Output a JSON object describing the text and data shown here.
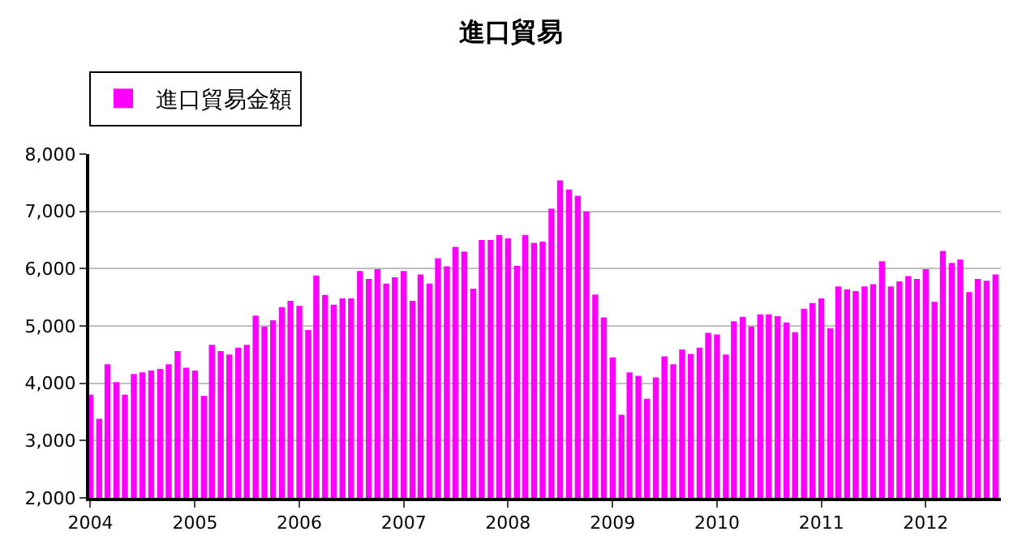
{
  "chart_data": {
    "type": "bar",
    "title": "進口貿易",
    "legend": "top left",
    "grid": "y",
    "x": [
      "2004-01",
      "2004-02",
      "2004-03",
      "2004-04",
      "2004-05",
      "2004-06",
      "2004-07",
      "2004-08",
      "2004-09",
      "2004-10",
      "2004-11",
      "2004-12",
      "2005-01",
      "2005-02",
      "2005-03",
      "2005-04",
      "2005-05",
      "2005-06",
      "2005-07",
      "2005-08",
      "2005-09",
      "2005-10",
      "2005-11",
      "2005-12",
      "2006-01",
      "2006-02",
      "2006-03",
      "2006-04",
      "2006-05",
      "2006-06",
      "2006-07",
      "2006-08",
      "2006-09",
      "2006-10",
      "2006-11",
      "2006-12",
      "2007-01",
      "2007-02",
      "2007-03",
      "2007-04",
      "2007-05",
      "2007-06",
      "2007-07",
      "2007-08",
      "2007-09",
      "2007-10",
      "2007-11",
      "2007-12",
      "2008-01",
      "2008-02",
      "2008-03",
      "2008-04",
      "2008-05",
      "2008-06",
      "2008-07",
      "2008-08",
      "2008-09",
      "2008-10",
      "2008-11",
      "2008-12",
      "2009-01",
      "2009-02",
      "2009-03",
      "2009-04",
      "2009-05",
      "2009-06",
      "2009-07",
      "2009-08",
      "2009-09",
      "2009-10",
      "2009-11",
      "2009-12",
      "2010-01",
      "2010-02",
      "2010-03",
      "2010-04",
      "2010-05",
      "2010-06",
      "2010-07",
      "2010-08",
      "2010-09",
      "2010-10",
      "2010-11",
      "2010-12",
      "2011-01",
      "2011-02",
      "2011-03",
      "2011-04",
      "2011-05",
      "2011-06",
      "2011-07",
      "2011-08",
      "2011-09",
      "2011-10",
      "2011-11",
      "2011-12",
      "2012-01",
      "2012-02",
      "2012-03",
      "2012-04",
      "2012-05",
      "2012-06",
      "2012-07",
      "2012-08",
      "2012-09"
    ],
    "series": [
      {
        "name": "進口貿易金額",
        "color": "#ff00ff",
        "values": [
          3800,
          3380,
          4330,
          4020,
          3800,
          4160,
          4190,
          4220,
          4250,
          4330,
          4560,
          4270,
          4220,
          3780,
          4670,
          4560,
          4500,
          4620,
          4670,
          5180,
          4990,
          5100,
          5330,
          5440,
          5350,
          4930,
          5880,
          5540,
          5370,
          5480,
          5480,
          5960,
          5820,
          5990,
          5740,
          5850,
          5960,
          5440,
          5900,
          5740,
          6180,
          6040,
          6380,
          6300,
          5650,
          6500,
          6500,
          6590,
          6530,
          6050,
          6590,
          6450,
          6470,
          7050,
          7540,
          7380,
          7270,
          7000,
          5550,
          5150,
          4450,
          3450,
          4190,
          4130,
          3730,
          4100,
          4470,
          4330,
          4590,
          4510,
          4620,
          4880,
          4850,
          4500,
          5080,
          5160,
          4990,
          5200,
          5200,
          5170,
          5060,
          4890,
          5300,
          5400,
          5480,
          4960,
          5690,
          5640,
          5610,
          5690,
          5730,
          6130,
          5690,
          5780,
          5870,
          5820,
          5990,
          5420,
          6310,
          6100,
          6160,
          5590,
          5820,
          5790,
          5900
        ]
      }
    ],
    "xlim": [
      "2003-12-28",
      "2012-09-20"
    ],
    "xticks": [
      {
        "value": "2004-01-01",
        "label": "2004"
      },
      {
        "value": "2005-01-01",
        "label": "2005"
      },
      {
        "value": "2006-01-01",
        "label": "2006"
      },
      {
        "value": "2007-01-01",
        "label": "2007"
      },
      {
        "value": "2008-01-01",
        "label": "2008"
      },
      {
        "value": "2009-01-01",
        "label": "2009"
      },
      {
        "value": "2010-01-01",
        "label": "2010"
      },
      {
        "value": "2011-01-01",
        "label": "2011"
      },
      {
        "value": "2012-01-01",
        "label": "2012"
      }
    ],
    "ylim": [
      2000,
      8000
    ],
    "yticks": [
      {
        "value": 2000,
        "label": "2,000"
      },
      {
        "value": 3000,
        "label": "3,000"
      },
      {
        "value": 4000,
        "label": "4,000"
      },
      {
        "value": 5000,
        "label": "5,000"
      },
      {
        "value": 6000,
        "label": "6,000"
      },
      {
        "value": 7000,
        "label": "7,000"
      },
      {
        "value": 8000,
        "label": "8,000"
      }
    ]
  }
}
